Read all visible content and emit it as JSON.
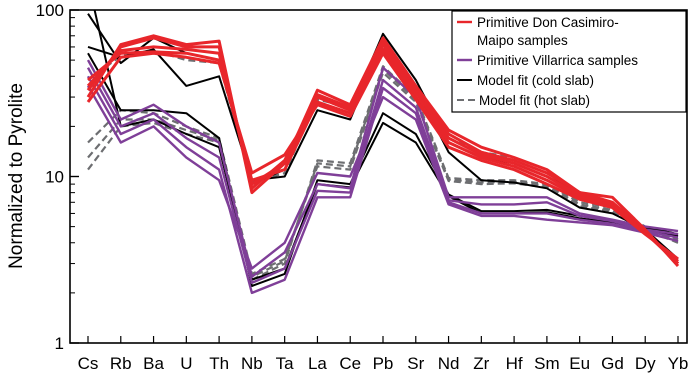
{
  "chart_data": {
    "type": "line",
    "ylabel": "Normalized to Pyrolite",
    "xlabel": "",
    "y_scale": "log",
    "ylim": [
      1,
      100
    ],
    "y_ticks": [
      {
        "value": 1,
        "label": "1"
      },
      {
        "value": 10,
        "label": "10"
      },
      {
        "value": 100,
        "label": "100"
      }
    ],
    "categories": [
      "Cs",
      "Rb",
      "Ba",
      "U",
      "Th",
      "Nb",
      "Ta",
      "La",
      "Ce",
      "Pb",
      "Sr",
      "Nd",
      "Zr",
      "Hf",
      "Sm",
      "Eu",
      "Gd",
      "Dy",
      "Yb"
    ],
    "legend": {
      "position": "top-right",
      "entries": [
        {
          "label": "Primitive Don Casimiro-",
          "color": "#e8262b",
          "style": "solid"
        },
        {
          "label": "Maipo samples",
          "color": "",
          "style": "none"
        },
        {
          "label": "Primitive Villarrica samples",
          "color": "#7f3f98",
          "style": "solid"
        },
        {
          "label": "Model fit (cold slab)",
          "color": "#000000",
          "style": "solid"
        },
        {
          "label": "Model fit (hot slab)",
          "color": "#6d6e71",
          "style": "dashed"
        }
      ]
    },
    "grid": false,
    "series": [
      {
        "group": "red",
        "color": "#e8262b",
        "values": [
          30,
          62,
          70,
          62,
          65,
          8,
          12,
          33,
          27,
          68,
          35,
          19,
          15,
          13,
          11,
          8,
          7.5,
          4.8,
          2.9
        ]
      },
      {
        "group": "red",
        "color": "#e8262b",
        "values": [
          33,
          60,
          68,
          60,
          60,
          8.5,
          12.5,
          31,
          26,
          65,
          34,
          18,
          14,
          12.5,
          10.5,
          8,
          7,
          4.7,
          3.0
        ]
      },
      {
        "group": "red",
        "color": "#e8262b",
        "values": [
          35,
          57,
          60,
          58,
          55,
          9,
          12,
          30,
          25,
          62,
          32,
          17,
          13.5,
          12,
          10,
          7.7,
          6.9,
          4.6,
          3.0
        ]
      },
      {
        "group": "red",
        "color": "#e8262b",
        "values": [
          38,
          55,
          56,
          55,
          50,
          9.5,
          11,
          28,
          24,
          58,
          30,
          16,
          13,
          11.5,
          9.5,
          7.5,
          6.7,
          4.6,
          3.1
        ]
      },
      {
        "group": "red",
        "color": "#e8262b",
        "values": [
          28,
          52,
          55,
          52,
          48,
          10.5,
          13.5,
          27,
          23,
          55,
          29,
          15,
          12.5,
          11,
          9,
          7.3,
          6.5,
          4.5,
          3.2
        ]
      },
      {
        "group": "purple",
        "color": "#7f3f98",
        "values": [
          50,
          22,
          27,
          20,
          16,
          2.5,
          3.5,
          9,
          8.5,
          45,
          30,
          7.5,
          7.5,
          7.5,
          7.5,
          6,
          5.5,
          5,
          4.7
        ]
      },
      {
        "group": "purple",
        "color": "#7f3f98",
        "values": [
          45,
          20,
          24,
          17,
          13,
          2.3,
          2.8,
          8.2,
          8,
          38,
          26,
          7.2,
          6.8,
          6.8,
          7,
          5.8,
          5.4,
          4.8,
          4.5
        ]
      },
      {
        "group": "purple",
        "color": "#7f3f98",
        "values": [
          40,
          18,
          22,
          15,
          11,
          2.0,
          2.4,
          7.5,
          7.5,
          34,
          24,
          7,
          6,
          6,
          6,
          5.5,
          5.2,
          4.7,
          4.3
        ]
      },
      {
        "group": "purple",
        "color": "#7f3f98",
        "values": [
          35,
          16,
          20,
          13,
          9.5,
          2.8,
          4.0,
          10.5,
          10,
          30,
          22,
          6.8,
          5.8,
          5.8,
          5.5,
          5.3,
          5.1,
          4.6,
          4.1
        ]
      },
      {
        "group": "black",
        "color": "#000000",
        "values": [
          95,
          48,
          68,
          55,
          50,
          9,
          11,
          30,
          25,
          72,
          38,
          16,
          13,
          12,
          10,
          8,
          7,
          4.8,
          3.2
        ]
      },
      {
        "group": "black",
        "color": "#000000",
        "values": [
          60,
          52,
          58,
          35,
          40,
          9.5,
          10,
          25,
          22,
          65,
          34,
          14,
          9.5,
          9.2,
          8.5,
          6.5,
          6,
          4.8,
          4.4
        ]
      },
      {
        "group": "black",
        "color": "#000000",
        "values": [
          55,
          25,
          25,
          24,
          17,
          2.2,
          2.6,
          9.5,
          9,
          24,
          18,
          7.8,
          6.2,
          6.2,
          6.3,
          5.8,
          5.4,
          5.0,
          4.5
        ]
      },
      {
        "group": "black",
        "color": "#000000",
        "values": [
          150,
          20,
          22,
          18,
          15,
          2.4,
          2.8,
          9,
          8.6,
          21,
          16,
          7.6,
          6,
          6,
          6.1,
          5.6,
          5.3,
          4.9,
          4.4
        ]
      },
      {
        "group": "gray-dashed",
        "color": "#6d6e71",
        "dashed": true,
        "values": [
          11,
          20,
          21,
          18,
          16,
          2.4,
          3,
          12.5,
          12,
          46,
          30,
          9.8,
          9.5,
          9.5,
          9,
          7,
          6.5,
          5,
          4.2
        ]
      },
      {
        "group": "gray-dashed",
        "color": "#6d6e71",
        "dashed": true,
        "values": [
          13,
          22,
          22,
          19,
          16.5,
          2.5,
          3.1,
          12,
          11.5,
          44,
          29,
          9.6,
          9.2,
          9.3,
          8.8,
          6.8,
          6.3,
          4.9,
          4.1
        ]
      },
      {
        "group": "gray-dashed",
        "color": "#6d6e71",
        "dashed": true,
        "values": [
          16,
          25,
          24,
          20,
          17,
          2.6,
          3.2,
          11.5,
          11,
          42,
          28,
          9.4,
          9,
          9.1,
          8.6,
          6.6,
          6.2,
          4.8,
          4.0
        ]
      },
      {
        "group": "gray-dashed",
        "color": "#6d6e71",
        "dashed": true,
        "values": [
          38,
          53,
          57,
          50,
          48,
          9.2,
          10.5,
          29,
          26,
          60,
          32,
          17,
          14,
          13,
          11,
          8,
          7,
          4.8,
          3.1
        ]
      }
    ]
  }
}
